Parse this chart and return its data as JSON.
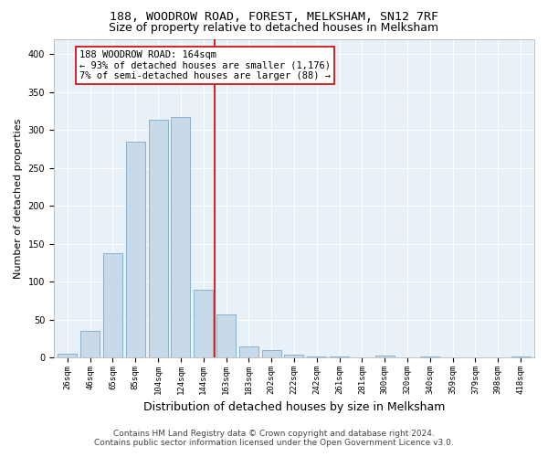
{
  "title": "188, WOODROW ROAD, FOREST, MELKSHAM, SN12 7RF",
  "subtitle": "Size of property relative to detached houses in Melksham",
  "xlabel": "Distribution of detached houses by size in Melksham",
  "ylabel": "Number of detached properties",
  "bar_color": "#c8daea",
  "bar_edge_color": "#7aaac8",
  "categories": [
    "26sqm",
    "46sqm",
    "65sqm",
    "85sqm",
    "104sqm",
    "124sqm",
    "144sqm",
    "163sqm",
    "183sqm",
    "202sqm",
    "222sqm",
    "242sqm",
    "261sqm",
    "281sqm",
    "300sqm",
    "320sqm",
    "340sqm",
    "359sqm",
    "379sqm",
    "398sqm",
    "418sqm"
  ],
  "values": [
    5,
    35,
    138,
    284,
    313,
    317,
    90,
    57,
    15,
    10,
    4,
    2,
    1,
    0,
    3,
    0,
    2,
    0,
    0,
    0,
    1
  ],
  "ylim": [
    0,
    420
  ],
  "yticks": [
    0,
    50,
    100,
    150,
    200,
    250,
    300,
    350,
    400
  ],
  "vline_x": 6.5,
  "annotation_text": "188 WOODROW ROAD: 164sqm\n← 93% of detached houses are smaller (1,176)\n7% of semi-detached houses are larger (88) →",
  "footer_line1": "Contains HM Land Registry data © Crown copyright and database right 2024.",
  "footer_line2": "Contains public sector information licensed under the Open Government Licence v3.0.",
  "background_color": "#ffffff",
  "plot_bg_color": "#e8f0f8",
  "grid_color": "#ffffff",
  "vline_color": "#cc0000",
  "annotation_box_color": "#ffffff",
  "annotation_border_color": "#cc0000",
  "title_fontsize": 9.5,
  "subtitle_fontsize": 9,
  "tick_fontsize": 6.5,
  "ylabel_fontsize": 8,
  "xlabel_fontsize": 9,
  "annotation_fontsize": 7.5,
  "footer_fontsize": 6.5
}
